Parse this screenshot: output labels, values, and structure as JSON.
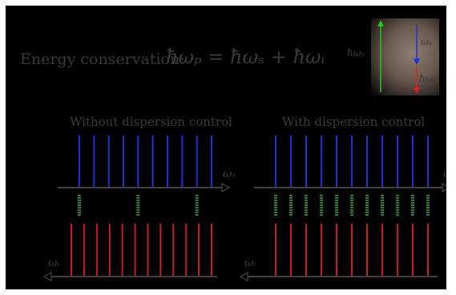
{
  "header": {
    "energy_label": "Energy conservation:",
    "equation": "ħωₚ = ħωₛ + ħωᵢ"
  },
  "inset": {
    "pump_label": "ħωₚ",
    "signal_label": "ωₛ",
    "idler_label": "ħωᵢ",
    "colors": {
      "pump": "#1ec81e",
      "signal": "#2030e0",
      "idler": "#e02020"
    }
  },
  "panels": [
    {
      "id": "left",
      "title": "Without dispersion control",
      "signal_axis_label": "ωₛ",
      "idler_axis_label": "ωᵢ",
      "signal_lines": 10,
      "idler_lines": 12,
      "pair_positions": [
        0,
        4,
        8
      ]
    },
    {
      "id": "right",
      "title": "With dispersion control",
      "signal_axis_label": "ωₛ",
      "idler_axis_label": "ωᵢ",
      "signal_lines": 11,
      "idler_lines": 11,
      "pair_positions": [
        0,
        1,
        2,
        3,
        4,
        5,
        6,
        7,
        8,
        9,
        10
      ]
    }
  ],
  "colors": {
    "background": "#000000",
    "signal": "#1f2fd8",
    "idler": "#c81e1e",
    "pair": "#2e7a2e",
    "axis": "#555555",
    "text": "#3a3a3a"
  }
}
